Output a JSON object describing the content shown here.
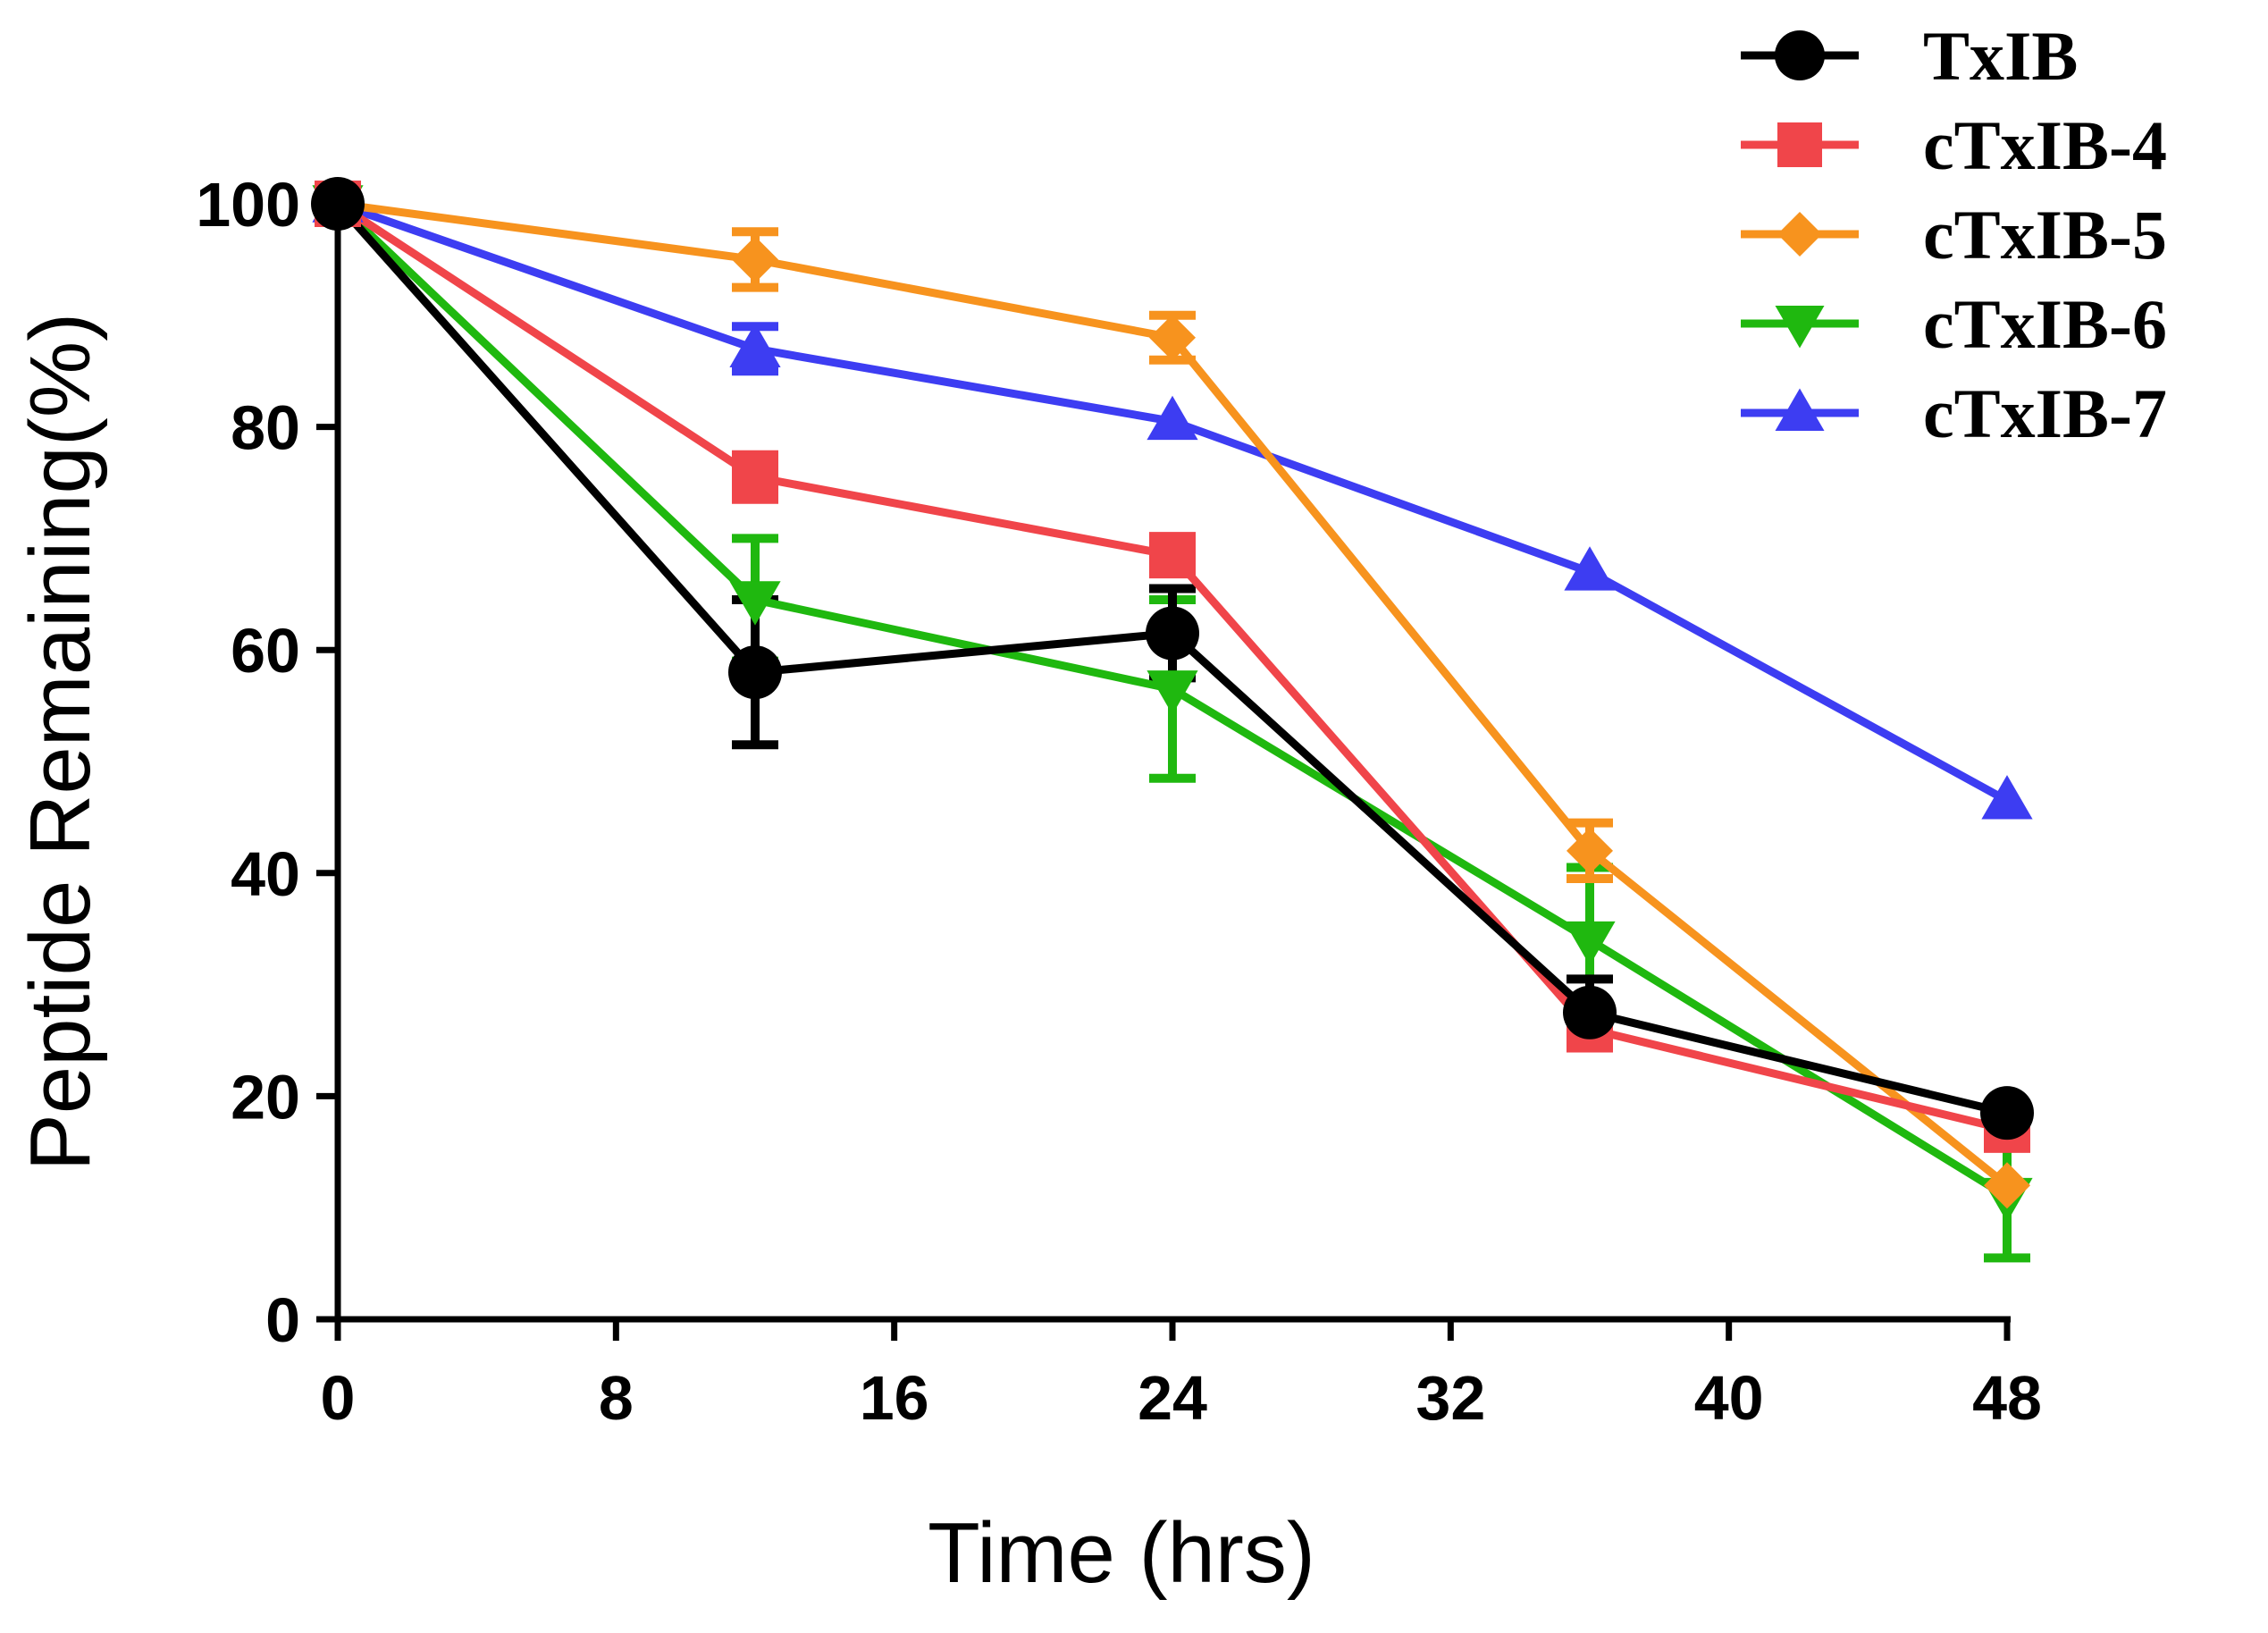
{
  "chart_data": {
    "type": "line",
    "xlabel": "Time (hrs)",
    "ylabel": "Peptide Remaining(%)",
    "xlim": [
      0,
      48
    ],
    "ylim": [
      0,
      100
    ],
    "xticks": [
      0,
      8,
      16,
      24,
      32,
      40,
      48
    ],
    "yticks": [
      0,
      20,
      40,
      60,
      80,
      100
    ],
    "grid": false,
    "legend_position": "top-right",
    "x": [
      0,
      12,
      24,
      36,
      48
    ],
    "series": [
      {
        "name": "TxIB",
        "color": "#000000",
        "marker": "circle",
        "values": [
          100,
          58,
          61.5,
          27.5,
          18.5
        ],
        "errors": [
          0,
          6.5,
          4,
          3,
          0
        ]
      },
      {
        "name": "cTxIB-4",
        "color": "#f0454a",
        "marker": "square",
        "values": [
          100,
          75.5,
          68.5,
          26,
          17
        ],
        "errors": [
          0,
          2,
          1.5,
          1,
          0
        ]
      },
      {
        "name": "cTxIB-5",
        "color": "#f7931e",
        "marker": "diamond",
        "values": [
          100,
          95,
          88,
          42,
          12
        ],
        "errors": [
          0,
          2.5,
          2,
          2.5,
          0
        ]
      },
      {
        "name": "cTxIB-6",
        "color": "#1fb80f",
        "marker": "triangle-down",
        "values": [
          100,
          64.5,
          56.5,
          34,
          11
        ],
        "errors": [
          0,
          5.5,
          8,
          6.5,
          5.5
        ]
      },
      {
        "name": "cTxIB-7",
        "color": "#3d3df2",
        "marker": "triangle-up",
        "values": [
          100,
          87,
          80.5,
          67,
          46.5
        ],
        "errors": [
          0,
          2,
          0,
          0,
          0
        ]
      }
    ]
  }
}
